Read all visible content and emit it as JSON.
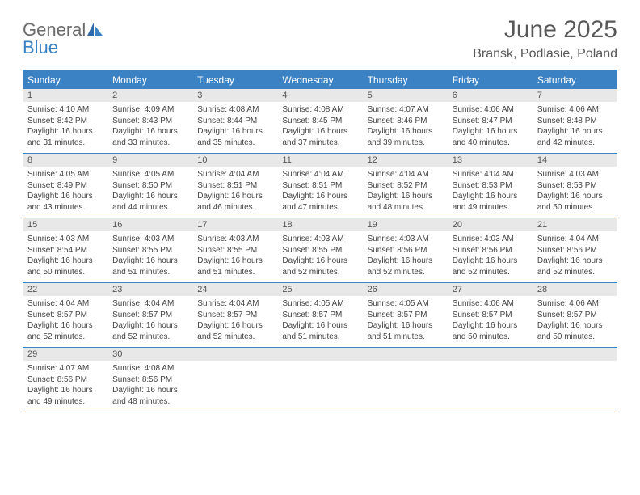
{
  "brand": {
    "name_part1": "General",
    "name_part2": "Blue"
  },
  "title": "June 2025",
  "location": "Bransk, Podlasie, Poland",
  "colors": {
    "header_bg": "#3b82c4",
    "header_text": "#ffffff",
    "daynum_bg": "#e8e8e8",
    "text": "#444444",
    "title_text": "#585858",
    "logo_gray": "#6b6b6b",
    "logo_blue": "#3b82c4",
    "page_bg": "#ffffff"
  },
  "fonts": {
    "title_size_pt": 22,
    "location_size_pt": 12,
    "header_size_pt": 9,
    "daynum_size_pt": 8,
    "body_size_pt": 7.5
  },
  "weekdays": [
    "Sunday",
    "Monday",
    "Tuesday",
    "Wednesday",
    "Thursday",
    "Friday",
    "Saturday"
  ],
  "weeks": [
    [
      {
        "n": "1",
        "sunrise": "Sunrise: 4:10 AM",
        "sunset": "Sunset: 8:42 PM",
        "daylight": "Daylight: 16 hours and 31 minutes."
      },
      {
        "n": "2",
        "sunrise": "Sunrise: 4:09 AM",
        "sunset": "Sunset: 8:43 PM",
        "daylight": "Daylight: 16 hours and 33 minutes."
      },
      {
        "n": "3",
        "sunrise": "Sunrise: 4:08 AM",
        "sunset": "Sunset: 8:44 PM",
        "daylight": "Daylight: 16 hours and 35 minutes."
      },
      {
        "n": "4",
        "sunrise": "Sunrise: 4:08 AM",
        "sunset": "Sunset: 8:45 PM",
        "daylight": "Daylight: 16 hours and 37 minutes."
      },
      {
        "n": "5",
        "sunrise": "Sunrise: 4:07 AM",
        "sunset": "Sunset: 8:46 PM",
        "daylight": "Daylight: 16 hours and 39 minutes."
      },
      {
        "n": "6",
        "sunrise": "Sunrise: 4:06 AM",
        "sunset": "Sunset: 8:47 PM",
        "daylight": "Daylight: 16 hours and 40 minutes."
      },
      {
        "n": "7",
        "sunrise": "Sunrise: 4:06 AM",
        "sunset": "Sunset: 8:48 PM",
        "daylight": "Daylight: 16 hours and 42 minutes."
      }
    ],
    [
      {
        "n": "8",
        "sunrise": "Sunrise: 4:05 AM",
        "sunset": "Sunset: 8:49 PM",
        "daylight": "Daylight: 16 hours and 43 minutes."
      },
      {
        "n": "9",
        "sunrise": "Sunrise: 4:05 AM",
        "sunset": "Sunset: 8:50 PM",
        "daylight": "Daylight: 16 hours and 44 minutes."
      },
      {
        "n": "10",
        "sunrise": "Sunrise: 4:04 AM",
        "sunset": "Sunset: 8:51 PM",
        "daylight": "Daylight: 16 hours and 46 minutes."
      },
      {
        "n": "11",
        "sunrise": "Sunrise: 4:04 AM",
        "sunset": "Sunset: 8:51 PM",
        "daylight": "Daylight: 16 hours and 47 minutes."
      },
      {
        "n": "12",
        "sunrise": "Sunrise: 4:04 AM",
        "sunset": "Sunset: 8:52 PM",
        "daylight": "Daylight: 16 hours and 48 minutes."
      },
      {
        "n": "13",
        "sunrise": "Sunrise: 4:04 AM",
        "sunset": "Sunset: 8:53 PM",
        "daylight": "Daylight: 16 hours and 49 minutes."
      },
      {
        "n": "14",
        "sunrise": "Sunrise: 4:03 AM",
        "sunset": "Sunset: 8:53 PM",
        "daylight": "Daylight: 16 hours and 50 minutes."
      }
    ],
    [
      {
        "n": "15",
        "sunrise": "Sunrise: 4:03 AM",
        "sunset": "Sunset: 8:54 PM",
        "daylight": "Daylight: 16 hours and 50 minutes."
      },
      {
        "n": "16",
        "sunrise": "Sunrise: 4:03 AM",
        "sunset": "Sunset: 8:55 PM",
        "daylight": "Daylight: 16 hours and 51 minutes."
      },
      {
        "n": "17",
        "sunrise": "Sunrise: 4:03 AM",
        "sunset": "Sunset: 8:55 PM",
        "daylight": "Daylight: 16 hours and 51 minutes."
      },
      {
        "n": "18",
        "sunrise": "Sunrise: 4:03 AM",
        "sunset": "Sunset: 8:55 PM",
        "daylight": "Daylight: 16 hours and 52 minutes."
      },
      {
        "n": "19",
        "sunrise": "Sunrise: 4:03 AM",
        "sunset": "Sunset: 8:56 PM",
        "daylight": "Daylight: 16 hours and 52 minutes."
      },
      {
        "n": "20",
        "sunrise": "Sunrise: 4:03 AM",
        "sunset": "Sunset: 8:56 PM",
        "daylight": "Daylight: 16 hours and 52 minutes."
      },
      {
        "n": "21",
        "sunrise": "Sunrise: 4:04 AM",
        "sunset": "Sunset: 8:56 PM",
        "daylight": "Daylight: 16 hours and 52 minutes."
      }
    ],
    [
      {
        "n": "22",
        "sunrise": "Sunrise: 4:04 AM",
        "sunset": "Sunset: 8:57 PM",
        "daylight": "Daylight: 16 hours and 52 minutes."
      },
      {
        "n": "23",
        "sunrise": "Sunrise: 4:04 AM",
        "sunset": "Sunset: 8:57 PM",
        "daylight": "Daylight: 16 hours and 52 minutes."
      },
      {
        "n": "24",
        "sunrise": "Sunrise: 4:04 AM",
        "sunset": "Sunset: 8:57 PM",
        "daylight": "Daylight: 16 hours and 52 minutes."
      },
      {
        "n": "25",
        "sunrise": "Sunrise: 4:05 AM",
        "sunset": "Sunset: 8:57 PM",
        "daylight": "Daylight: 16 hours and 51 minutes."
      },
      {
        "n": "26",
        "sunrise": "Sunrise: 4:05 AM",
        "sunset": "Sunset: 8:57 PM",
        "daylight": "Daylight: 16 hours and 51 minutes."
      },
      {
        "n": "27",
        "sunrise": "Sunrise: 4:06 AM",
        "sunset": "Sunset: 8:57 PM",
        "daylight": "Daylight: 16 hours and 50 minutes."
      },
      {
        "n": "28",
        "sunrise": "Sunrise: 4:06 AM",
        "sunset": "Sunset: 8:57 PM",
        "daylight": "Daylight: 16 hours and 50 minutes."
      }
    ],
    [
      {
        "n": "29",
        "sunrise": "Sunrise: 4:07 AM",
        "sunset": "Sunset: 8:56 PM",
        "daylight": "Daylight: 16 hours and 49 minutes."
      },
      {
        "n": "30",
        "sunrise": "Sunrise: 4:08 AM",
        "sunset": "Sunset: 8:56 PM",
        "daylight": "Daylight: 16 hours and 48 minutes."
      },
      null,
      null,
      null,
      null,
      null
    ]
  ]
}
